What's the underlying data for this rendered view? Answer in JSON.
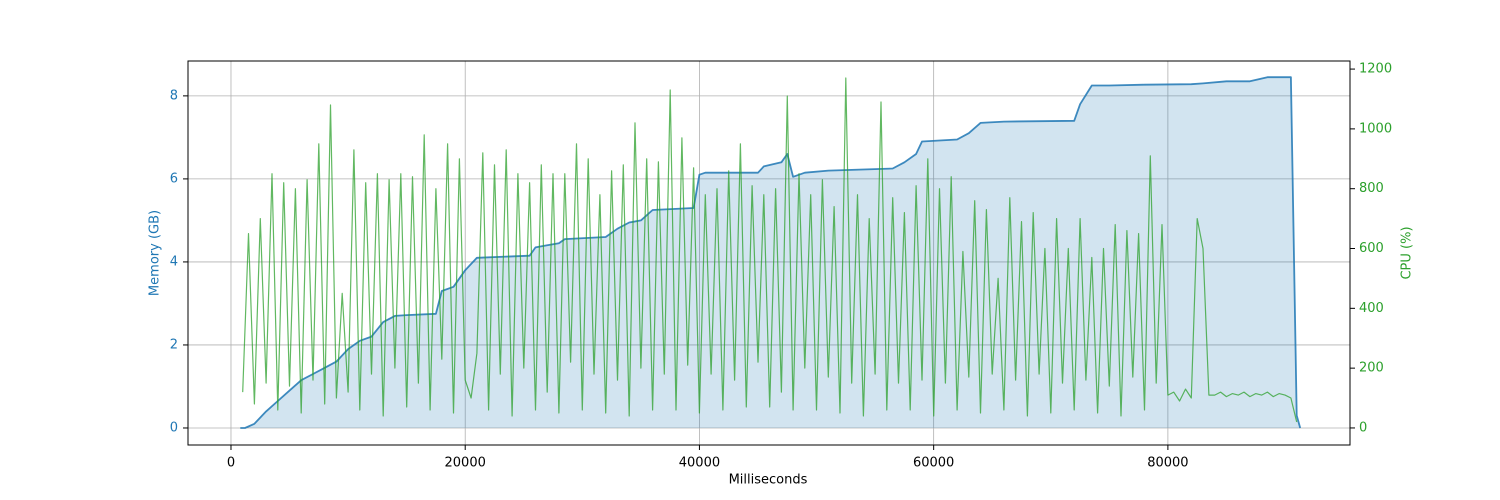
{
  "chart_data": {
    "type": "line",
    "xlabel": "Milliseconds",
    "ylabel": "Memory (GB)",
    "y2label": "CPU (%)",
    "xlim": [
      -3670,
      95550
    ],
    "ylim": [
      -0.41,
      8.84
    ],
    "y2lim": [
      -57,
      1227
    ],
    "xticks": [
      0,
      20000,
      40000,
      60000,
      80000
    ],
    "yticks": [
      0,
      2,
      4,
      6,
      8
    ],
    "y2ticks": [
      0,
      200,
      400,
      600,
      800,
      1000,
      1200
    ],
    "grid": true,
    "series": [
      {
        "name": "Memory (GB)",
        "color": "#1f77b4",
        "fill": true,
        "x": [
          800,
          1200,
          2000,
          3000,
          4000,
          5000,
          6000,
          7000,
          8000,
          9000,
          10000,
          11000,
          12000,
          13000,
          14000,
          15000,
          17500,
          18000,
          19000,
          20000,
          21000,
          25500,
          26000,
          27000,
          28000,
          28500,
          32000,
          33000,
          34000,
          35000,
          36000,
          39500,
          40000,
          40500,
          45000,
          45500,
          47000,
          47500,
          48000,
          49000,
          51000,
          56500,
          57500,
          58500,
          59000,
          62000,
          63000,
          64000,
          66000,
          72000,
          72500,
          73500,
          75000,
          78000,
          82000,
          83000,
          85000,
          87000,
          88500,
          90500,
          91000,
          91300
        ],
        "values": [
          0,
          0,
          0.1,
          0.4,
          0.65,
          0.9,
          1.15,
          1.3,
          1.45,
          1.6,
          1.9,
          2.1,
          2.2,
          2.55,
          2.7,
          2.72,
          2.75,
          3.3,
          3.4,
          3.8,
          4.1,
          4.15,
          4.35,
          4.4,
          4.45,
          4.55,
          4.6,
          4.8,
          4.95,
          5.0,
          5.25,
          5.3,
          6.1,
          6.15,
          6.15,
          6.3,
          6.4,
          6.6,
          6.05,
          6.15,
          6.2,
          6.25,
          6.4,
          6.6,
          6.9,
          6.95,
          7.1,
          7.35,
          7.38,
          7.4,
          7.8,
          8.25,
          8.25,
          8.27,
          8.28,
          8.3,
          8.35,
          8.35,
          8.45,
          8.45,
          0.3,
          0
        ]
      },
      {
        "name": "CPU (%)",
        "color": "#2ca02c",
        "axis": "y2",
        "x": [
          1000,
          1500,
          2000,
          2500,
          3000,
          3500,
          4000,
          4500,
          5000,
          5500,
          6000,
          6500,
          7000,
          7500,
          8000,
          8500,
          9000,
          9500,
          10000,
          10500,
          11000,
          11500,
          12000,
          12500,
          13000,
          13500,
          14000,
          14500,
          15000,
          15500,
          16000,
          16500,
          17000,
          17500,
          18000,
          18500,
          19000,
          19500,
          20000,
          20500,
          21000,
          21500,
          22000,
          22500,
          23000,
          23500,
          24000,
          24500,
          25000,
          25500,
          26000,
          26500,
          27000,
          27500,
          28000,
          28500,
          29000,
          29500,
          30000,
          30500,
          31000,
          31500,
          32000,
          32500,
          33000,
          33500,
          34000,
          34500,
          35000,
          35500,
          36000,
          36500,
          37000,
          37500,
          38000,
          38500,
          39000,
          39500,
          40000,
          40500,
          41000,
          41500,
          42000,
          42500,
          43000,
          43500,
          44000,
          44500,
          45000,
          45500,
          46000,
          46500,
          47000,
          47500,
          48000,
          48500,
          49000,
          49500,
          50000,
          50500,
          51000,
          51500,
          52000,
          52500,
          53000,
          53500,
          54000,
          54500,
          55000,
          55500,
          56000,
          56500,
          57000,
          57500,
          58000,
          58500,
          59000,
          59500,
          60000,
          60500,
          61000,
          61500,
          62000,
          62500,
          63000,
          63500,
          64000,
          64500,
          65000,
          65500,
          66000,
          66500,
          67000,
          67500,
          68000,
          68500,
          69000,
          69500,
          70000,
          70500,
          71000,
          71500,
          72000,
          72500,
          73000,
          73500,
          74000,
          74500,
          75000,
          75500,
          76000,
          76500,
          77000,
          77500,
          78000,
          78500,
          79000,
          79500,
          80000,
          80500,
          81000,
          81500,
          82000,
          82500,
          83000,
          83500,
          84000,
          84500,
          85000,
          85500,
          86000,
          86500,
          87000,
          87500,
          88000,
          88500,
          89000,
          89500,
          90000,
          90500,
          91000
        ],
        "values": [
          120,
          650,
          80,
          700,
          150,
          850,
          60,
          820,
          140,
          800,
          50,
          830,
          160,
          950,
          80,
          1080,
          100,
          450,
          120,
          930,
          60,
          820,
          180,
          850,
          40,
          830,
          200,
          850,
          70,
          840,
          150,
          980,
          60,
          800,
          230,
          950,
          50,
          900,
          160,
          100,
          250,
          920,
          60,
          880,
          180,
          930,
          40,
          850,
          200,
          820,
          60,
          880,
          120,
          850,
          50,
          850,
          220,
          950,
          60,
          900,
          180,
          780,
          50,
          860,
          160,
          880,
          40,
          1020,
          200,
          900,
          60,
          890,
          180,
          1130,
          60,
          970,
          210,
          870,
          50,
          780,
          180,
          800,
          60,
          860,
          160,
          950,
          70,
          810,
          220,
          780,
          70,
          800,
          120,
          1110,
          60,
          850,
          200,
          780,
          60,
          830,
          170,
          740,
          50,
          1170,
          150,
          780,
          40,
          700,
          180,
          1090,
          60,
          770,
          150,
          720,
          60,
          810,
          160,
          900,
          40,
          800,
          150,
          840,
          60,
          590,
          170,
          760,
          50,
          730,
          180,
          500,
          60,
          770,
          160,
          690,
          40,
          720,
          180,
          600,
          50,
          700,
          150,
          600,
          60,
          700,
          160,
          570,
          50,
          600,
          140,
          680,
          40,
          660,
          170,
          650,
          60,
          910,
          150,
          680,
          110,
          120,
          90,
          130,
          100,
          700,
          600,
          110,
          110,
          120,
          105,
          115,
          110,
          120,
          105,
          115,
          110,
          120,
          105,
          115,
          110,
          100,
          20
        ]
      }
    ]
  }
}
